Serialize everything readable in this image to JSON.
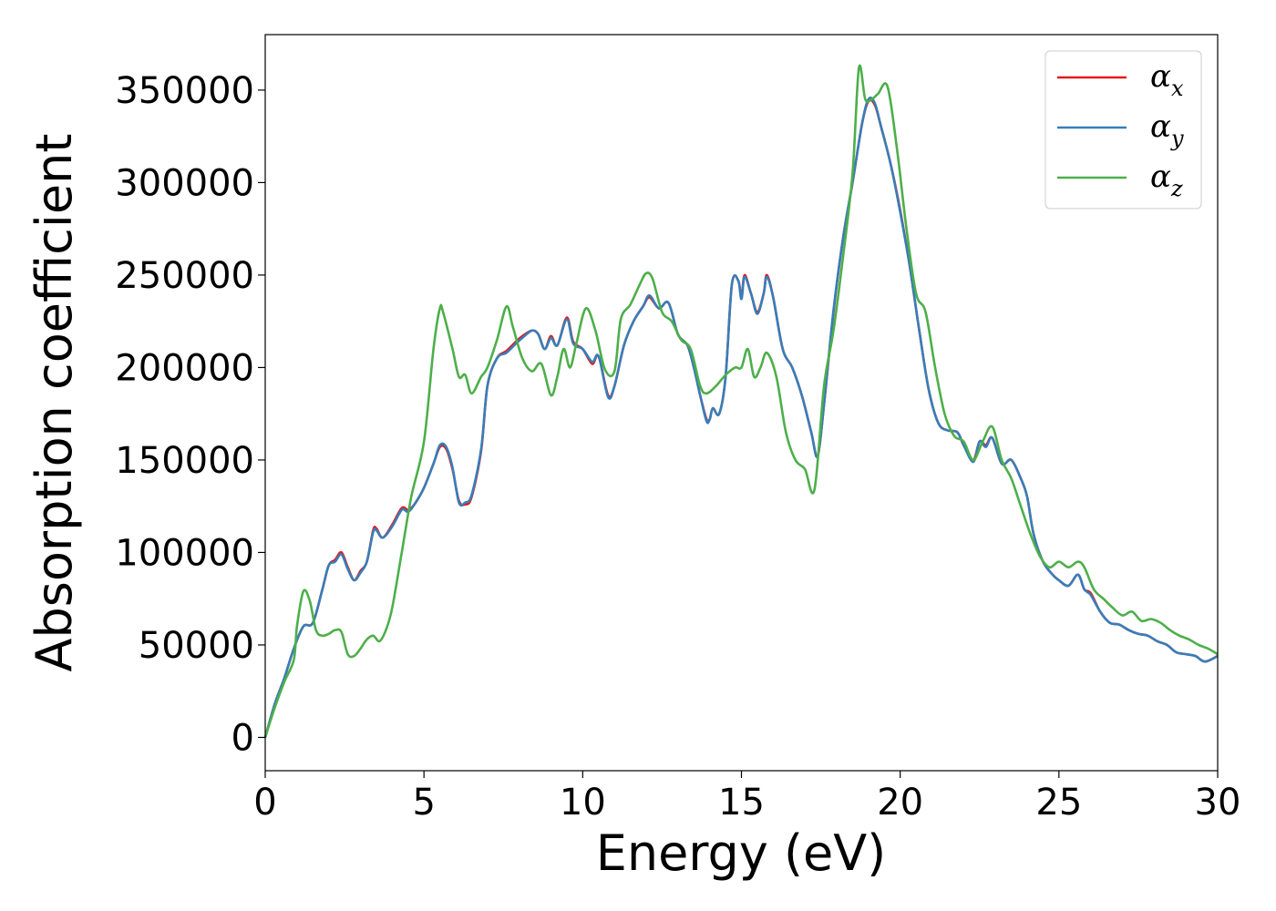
{
  "chart_data": {
    "type": "line",
    "title": "",
    "xlabel": "Energy (eV)",
    "ylabel": "Absorption coefficient",
    "xlim": [
      0,
      30
    ],
    "ylim": [
      -18000,
      380000
    ],
    "x_ticks": [
      "0",
      "5",
      "10",
      "15",
      "20",
      "25",
      "30"
    ],
    "y_ticks": [
      "0",
      "50000",
      "100000",
      "150000",
      "200000",
      "250000",
      "300000",
      "350000"
    ],
    "grid": false,
    "legend_position": "top-right",
    "series": [
      {
        "name": "α",
        "subscript": "x",
        "color": "#e41a1c",
        "x": [
          0.0,
          0.3,
          0.6,
          0.9,
          1.2,
          1.5,
          1.8,
          2.0,
          2.2,
          2.4,
          2.6,
          2.8,
          3.0,
          3.2,
          3.4,
          3.5,
          3.7,
          4.0,
          4.3,
          4.5,
          4.7,
          5.0,
          5.3,
          5.5,
          5.7,
          5.9,
          6.1,
          6.3,
          6.5,
          6.8,
          7.0,
          7.3,
          7.6,
          7.9,
          8.1,
          8.4,
          8.6,
          8.8,
          9.0,
          9.2,
          9.5,
          9.7,
          10.0,
          10.3,
          10.5,
          10.8,
          11.0,
          11.3,
          11.6,
          11.9,
          12.1,
          12.4,
          12.7,
          13.0,
          13.3,
          13.5,
          13.7,
          13.9,
          14.0,
          14.1,
          14.3,
          14.5,
          14.7,
          14.9,
          15.0,
          15.1,
          15.3,
          15.5,
          15.7,
          15.8,
          16.0,
          16.3,
          16.6,
          16.9,
          17.2,
          17.4,
          17.6,
          17.9,
          18.2,
          18.5,
          18.8,
          19.0,
          19.2,
          19.4,
          19.7,
          20.0,
          20.3,
          20.6,
          20.9,
          21.2,
          21.5,
          21.8,
          22.0,
          22.3,
          22.5,
          22.7,
          22.9,
          23.2,
          23.5,
          23.8,
          24.0,
          24.2,
          24.5,
          24.8,
          25.0,
          25.3,
          25.6,
          25.8,
          26.0,
          26.3,
          26.6,
          26.9,
          27.2,
          27.5,
          27.8,
          28.1,
          28.4,
          28.7,
          29.0,
          29.3,
          29.6,
          30.0
        ],
        "y": [
          0,
          18000,
          32000,
          48000,
          60000,
          62000,
          80000,
          93000,
          96000,
          100000,
          92000,
          85000,
          90000,
          95000,
          112000,
          113000,
          108000,
          115000,
          124000,
          123000,
          126000,
          135000,
          148000,
          157000,
          156000,
          145000,
          128000,
          126000,
          130000,
          155000,
          190000,
          205000,
          209000,
          214000,
          217000,
          220000,
          218000,
          210000,
          217000,
          212000,
          227000,
          214000,
          210000,
          202000,
          206000,
          185000,
          190000,
          212000,
          225000,
          233000,
          238000,
          232000,
          235000,
          218000,
          212000,
          200000,
          185000,
          172000,
          172000,
          178000,
          175000,
          195000,
          245000,
          247000,
          238000,
          250000,
          240000,
          230000,
          240000,
          250000,
          238000,
          210000,
          200000,
          185000,
          165000,
          152000,
          180000,
          230000,
          270000,
          300000,
          332000,
          344000,
          342000,
          330000,
          310000,
          285000,
          255000,
          220000,
          188000,
          170000,
          166000,
          165000,
          158000,
          150000,
          160000,
          158000,
          162000,
          148000,
          150000,
          140000,
          130000,
          110000,
          95000,
          88000,
          85000,
          82000,
          88000,
          80000,
          78000,
          68000,
          62000,
          61000,
          58000,
          56000,
          55000,
          52000,
          50000,
          46000,
          45000,
          44000,
          41000,
          44000
        ]
      },
      {
        "name": "α",
        "subscript": "y",
        "color": "#377eb8",
        "x": [
          0.0,
          0.3,
          0.6,
          0.9,
          1.2,
          1.5,
          1.8,
          2.0,
          2.2,
          2.4,
          2.6,
          2.8,
          3.0,
          3.2,
          3.4,
          3.5,
          3.7,
          4.0,
          4.3,
          4.5,
          4.7,
          5.0,
          5.3,
          5.5,
          5.7,
          5.9,
          6.1,
          6.3,
          6.5,
          6.8,
          7.0,
          7.3,
          7.6,
          7.9,
          8.1,
          8.4,
          8.6,
          8.8,
          9.0,
          9.2,
          9.5,
          9.7,
          10.0,
          10.3,
          10.5,
          10.8,
          11.0,
          11.3,
          11.6,
          11.9,
          12.1,
          12.4,
          12.7,
          13.0,
          13.3,
          13.5,
          13.7,
          13.9,
          14.0,
          14.1,
          14.3,
          14.5,
          14.7,
          14.9,
          15.0,
          15.1,
          15.3,
          15.5,
          15.7,
          15.8,
          16.0,
          16.3,
          16.6,
          16.9,
          17.2,
          17.4,
          17.6,
          17.9,
          18.2,
          18.5,
          18.8,
          19.0,
          19.2,
          19.4,
          19.7,
          20.0,
          20.3,
          20.6,
          20.9,
          21.2,
          21.5,
          21.8,
          22.0,
          22.3,
          22.5,
          22.7,
          22.9,
          23.2,
          23.5,
          23.8,
          24.0,
          24.2,
          24.5,
          24.8,
          25.0,
          25.3,
          25.6,
          25.8,
          26.0,
          26.3,
          26.6,
          26.9,
          27.2,
          27.5,
          27.8,
          28.1,
          28.4,
          28.7,
          29.0,
          29.3,
          29.6,
          30.0
        ],
        "y": [
          0,
          18000,
          32000,
          48000,
          60000,
          62000,
          80000,
          93000,
          95000,
          99000,
          91000,
          85000,
          89000,
          95000,
          111000,
          112000,
          108000,
          114000,
          123000,
          122000,
          126000,
          135000,
          148000,
          158000,
          157000,
          146000,
          127000,
          127000,
          131000,
          156000,
          190000,
          205000,
          208000,
          213000,
          216000,
          220000,
          218000,
          210000,
          216000,
          212000,
          226000,
          213000,
          210000,
          203000,
          206000,
          184000,
          190000,
          212000,
          225000,
          233000,
          239000,
          232000,
          235000,
          218000,
          212000,
          200000,
          185000,
          171000,
          172000,
          178000,
          175000,
          195000,
          245000,
          247000,
          237000,
          249000,
          240000,
          229000,
          240000,
          249000,
          238000,
          210000,
          200000,
          185000,
          165000,
          152000,
          180000,
          231000,
          270000,
          300000,
          332000,
          345000,
          343000,
          330000,
          310000,
          284000,
          255000,
          220000,
          188000,
          170000,
          166000,
          165000,
          158000,
          149000,
          160000,
          157000,
          162000,
          148000,
          150000,
          140000,
          130000,
          110000,
          95000,
          88000,
          85000,
          82000,
          88000,
          80000,
          77000,
          68000,
          62000,
          61000,
          58000,
          56000,
          55000,
          52000,
          50000,
          46000,
          45000,
          44000,
          41000,
          44000
        ]
      },
      {
        "name": "α",
        "subscript": "z",
        "color": "#4daf4a",
        "x": [
          0.0,
          0.3,
          0.6,
          0.9,
          1.0,
          1.2,
          1.4,
          1.6,
          1.8,
          2.0,
          2.2,
          2.4,
          2.6,
          2.8,
          3.0,
          3.2,
          3.4,
          3.6,
          3.8,
          4.0,
          4.3,
          4.6,
          5.0,
          5.3,
          5.5,
          5.6,
          5.9,
          6.1,
          6.3,
          6.5,
          6.8,
          7.0,
          7.3,
          7.6,
          7.8,
          8.1,
          8.4,
          8.7,
          9.0,
          9.2,
          9.4,
          9.6,
          9.8,
          10.1,
          10.4,
          10.7,
          11.0,
          11.2,
          11.5,
          11.8,
          12.0,
          12.2,
          12.5,
          12.8,
          13.1,
          13.4,
          13.7,
          13.9,
          14.2,
          14.5,
          14.8,
          15.0,
          15.2,
          15.4,
          15.6,
          15.8,
          16.1,
          16.4,
          16.7,
          17.0,
          17.3,
          17.6,
          17.9,
          18.2,
          18.5,
          18.7,
          18.9,
          19.1,
          19.3,
          19.6,
          19.9,
          20.2,
          20.5,
          20.8,
          21.1,
          21.4,
          21.7,
          22.0,
          22.3,
          22.6,
          22.9,
          23.2,
          23.5,
          23.8,
          24.1,
          24.4,
          24.7,
          25.0,
          25.3,
          25.6,
          25.8,
          26.1,
          26.4,
          26.7,
          27.0,
          27.3,
          27.6,
          27.9,
          28.2,
          28.5,
          28.8,
          29.1,
          29.4,
          29.7,
          30.0
        ],
        "y": [
          0,
          16000,
          30000,
          42000,
          60000,
          79000,
          74000,
          58000,
          55000,
          56000,
          58000,
          57000,
          45000,
          44000,
          48000,
          53000,
          55000,
          52000,
          58000,
          70000,
          100000,
          130000,
          160000,
          210000,
          232000,
          230000,
          210000,
          195000,
          196000,
          186000,
          195000,
          200000,
          215000,
          233000,
          222000,
          205000,
          198000,
          202000,
          185000,
          195000,
          210000,
          200000,
          213000,
          232000,
          220000,
          199000,
          198000,
          226000,
          234000,
          245000,
          251000,
          248000,
          230000,
          225000,
          215000,
          210000,
          190000,
          186000,
          190000,
          196000,
          200000,
          200000,
          210000,
          195000,
          200000,
          208000,
          195000,
          165000,
          150000,
          145000,
          134000,
          190000,
          220000,
          260000,
          305000,
          362000,
          345000,
          345000,
          348000,
          352000,
          318000,
          275000,
          240000,
          230000,
          200000,
          175000,
          163000,
          160000,
          150000,
          160000,
          168000,
          150000,
          140000,
          125000,
          110000,
          98000,
          92000,
          95000,
          92000,
          95000,
          92000,
          80000,
          75000,
          70000,
          66000,
          68000,
          63000,
          64000,
          62000,
          58000,
          55000,
          53000,
          50000,
          48000,
          45000
        ]
      }
    ]
  }
}
